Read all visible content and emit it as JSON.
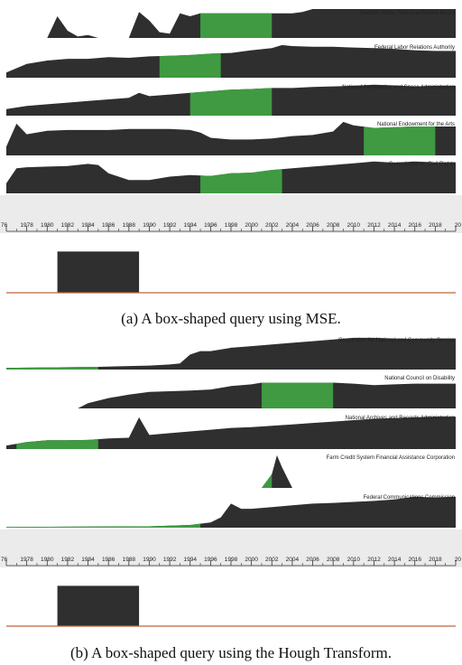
{
  "figure": {
    "caption_a": "(a) A box-shaped query using MSE.",
    "caption_b": "(b) A box-shaped query using the Hough Transform."
  },
  "colors": {
    "area": "#2f2f2f",
    "highlight": "#3f9a42",
    "background": "#ffffff",
    "axis_band": "#ebebeb",
    "baseline": "#c0643a"
  },
  "chart_data": [
    {
      "type": "area",
      "title": "(a) A box-shaped query using MSE.",
      "x_range": [
        1976,
        2020
      ],
      "x_ticks": [
        "76",
        "1978",
        "1980",
        "1982",
        "1984",
        "1986",
        "1988",
        "1990",
        "1992",
        "1994",
        "1996",
        "1998",
        "2000",
        "2002",
        "2004",
        "2006",
        "2008",
        "2010",
        "2012",
        "2014",
        "2016",
        "2018",
        "20"
      ],
      "series": [
        {
          "name": "Nuclear Waste Technical Review Board",
          "highlight": [
            1995,
            2002
          ],
          "points": [
            [
              1976,
              0
            ],
            [
              1979,
              0
            ],
            [
              1980,
              0
            ],
            [
              1981,
              0.75
            ],
            [
              1982,
              0.25
            ],
            [
              1983,
              0.05
            ],
            [
              1984,
              0.1
            ],
            [
              1985,
              0
            ],
            [
              1987,
              0
            ],
            [
              1988,
              0
            ],
            [
              1989,
              0.9
            ],
            [
              1990,
              0.6
            ],
            [
              1991,
              0.2
            ],
            [
              1992,
              0.15
            ],
            [
              1993,
              0.85
            ],
            [
              1994,
              0.75
            ],
            [
              1995,
              0.85
            ],
            [
              2004,
              0.85
            ],
            [
              2005,
              0.9
            ],
            [
              2006,
              1.0
            ],
            [
              2008,
              1.0
            ],
            [
              2010,
              1.0
            ],
            [
              2014,
              1.0
            ],
            [
              2020,
              1.0
            ]
          ]
        },
        {
          "name": "Federal Labor Relations Authority",
          "highlight": [
            1991,
            1997
          ],
          "points": [
            [
              1976,
              0.15
            ],
            [
              1978,
              0.4
            ],
            [
              1980,
              0.5
            ],
            [
              1982,
              0.55
            ],
            [
              1984,
              0.55
            ],
            [
              1986,
              0.6
            ],
            [
              1988,
              0.58
            ],
            [
              1990,
              0.62
            ],
            [
              1992,
              0.64
            ],
            [
              1994,
              0.66
            ],
            [
              1996,
              0.7
            ],
            [
              1998,
              0.72
            ],
            [
              2000,
              0.8
            ],
            [
              2002,
              0.86
            ],
            [
              2003,
              0.95
            ],
            [
              2004,
              0.92
            ],
            [
              2006,
              0.9
            ],
            [
              2008,
              0.9
            ],
            [
              2010,
              0.88
            ],
            [
              2012,
              0.86
            ],
            [
              2014,
              0.84
            ],
            [
              2016,
              0.8
            ],
            [
              2018,
              0.78
            ],
            [
              2020,
              0.78
            ]
          ]
        },
        {
          "name": "National Aeronautics and Space Administration",
          "highlight": [
            1994,
            2002
          ],
          "points": [
            [
              1976,
              0.2
            ],
            [
              1978,
              0.3
            ],
            [
              1980,
              0.35
            ],
            [
              1982,
              0.4
            ],
            [
              1984,
              0.45
            ],
            [
              1986,
              0.5
            ],
            [
              1988,
              0.55
            ],
            [
              1989,
              0.7
            ],
            [
              1990,
              0.6
            ],
            [
              1992,
              0.65
            ],
            [
              1994,
              0.7
            ],
            [
              1996,
              0.75
            ],
            [
              1998,
              0.8
            ],
            [
              2000,
              0.82
            ],
            [
              2002,
              0.85
            ],
            [
              2004,
              0.85
            ],
            [
              2006,
              0.88
            ],
            [
              2008,
              0.9
            ],
            [
              2010,
              0.92
            ],
            [
              2012,
              0.95
            ],
            [
              2014,
              0.93
            ],
            [
              2016,
              0.9
            ],
            [
              2018,
              0.92
            ],
            [
              2020,
              0.92
            ]
          ]
        },
        {
          "name": "National Endowment for the Arts",
          "highlight": [
            2011,
            2018
          ],
          "points": [
            [
              1976,
              0.25
            ],
            [
              1977,
              0.9
            ],
            [
              1978,
              0.6
            ],
            [
              1980,
              0.7
            ],
            [
              1982,
              0.72
            ],
            [
              1984,
              0.72
            ],
            [
              1986,
              0.72
            ],
            [
              1988,
              0.75
            ],
            [
              1990,
              0.75
            ],
            [
              1992,
              0.75
            ],
            [
              1994,
              0.72
            ],
            [
              1995,
              0.65
            ],
            [
              1996,
              0.5
            ],
            [
              1998,
              0.45
            ],
            [
              2000,
              0.45
            ],
            [
              2002,
              0.48
            ],
            [
              2004,
              0.55
            ],
            [
              2006,
              0.58
            ],
            [
              2008,
              0.68
            ],
            [
              2009,
              0.95
            ],
            [
              2010,
              0.85
            ],
            [
              2012,
              0.78
            ],
            [
              2014,
              0.8
            ],
            [
              2016,
              0.82
            ],
            [
              2018,
              0.82
            ],
            [
              2020,
              0.82
            ]
          ]
        },
        {
          "name": "Commission on Civil Rights",
          "highlight": [
            1995,
            2003
          ],
          "points": [
            [
              1976,
              0.3
            ],
            [
              1977,
              0.75
            ],
            [
              1978,
              0.78
            ],
            [
              1980,
              0.8
            ],
            [
              1982,
              0.82
            ],
            [
              1984,
              0.88
            ],
            [
              1985,
              0.85
            ],
            [
              1986,
              0.6
            ],
            [
              1988,
              0.4
            ],
            [
              1990,
              0.4
            ],
            [
              1992,
              0.5
            ],
            [
              1994,
              0.55
            ],
            [
              1996,
              0.52
            ],
            [
              1998,
              0.6
            ],
            [
              2000,
              0.62
            ],
            [
              2002,
              0.7
            ],
            [
              2004,
              0.75
            ],
            [
              2006,
              0.8
            ],
            [
              2008,
              0.85
            ],
            [
              2010,
              0.9
            ],
            [
              2012,
              0.95
            ],
            [
              2014,
              0.92
            ],
            [
              2016,
              0.95
            ],
            [
              2018,
              0.93
            ],
            [
              2020,
              0.93
            ]
          ]
        }
      ],
      "query": {
        "shape": "box",
        "points": [
          [
            1976,
            0
          ],
          [
            1981,
            0
          ],
          [
            1981,
            0.95
          ],
          [
            1989,
            0.95
          ],
          [
            1989,
            0
          ],
          [
            2020,
            0
          ]
        ]
      }
    },
    {
      "type": "area",
      "title": "(b) A box-shaped query using the Hough Transform.",
      "x_range": [
        1976,
        2020
      ],
      "x_ticks": [
        "76",
        "1978",
        "1980",
        "1982",
        "1984",
        "1986",
        "1988",
        "1990",
        "1992",
        "1994",
        "1996",
        "1998",
        "2000",
        "2002",
        "2004",
        "2006",
        "2008",
        "2010",
        "2012",
        "2014",
        "2016",
        "2018",
        "20"
      ],
      "series": [
        {
          "name": "Corporation for National and Community Service",
          "highlight": [
            1976,
            1985
          ],
          "points": [
            [
              1976,
              0.05
            ],
            [
              1985,
              0.08
            ],
            [
              1990,
              0.12
            ],
            [
              1992,
              0.15
            ],
            [
              1993,
              0.18
            ],
            [
              1994,
              0.45
            ],
            [
              1995,
              0.55
            ],
            [
              1996,
              0.55
            ],
            [
              1998,
              0.65
            ],
            [
              2000,
              0.7
            ],
            [
              2002,
              0.75
            ],
            [
              2004,
              0.8
            ],
            [
              2006,
              0.85
            ],
            [
              2008,
              0.9
            ],
            [
              2010,
              0.95
            ],
            [
              2012,
              0.95
            ],
            [
              2014,
              0.93
            ],
            [
              2016,
              0.92
            ],
            [
              2018,
              0.93
            ],
            [
              2020,
              0.93
            ]
          ]
        },
        {
          "name": "National Council on Disability",
          "highlight": [
            2001,
            2008
          ],
          "points": [
            [
              1976,
              0
            ],
            [
              1983,
              0
            ],
            [
              1984,
              0.15
            ],
            [
              1986,
              0.3
            ],
            [
              1988,
              0.4
            ],
            [
              1990,
              0.48
            ],
            [
              1992,
              0.5
            ],
            [
              1994,
              0.52
            ],
            [
              1996,
              0.55
            ],
            [
              1998,
              0.65
            ],
            [
              2000,
              0.7
            ],
            [
              2001,
              0.75
            ],
            [
              2008,
              0.75
            ],
            [
              2010,
              0.72
            ],
            [
              2012,
              0.68
            ],
            [
              2014,
              0.7
            ],
            [
              2016,
              0.72
            ],
            [
              2018,
              0.72
            ],
            [
              2020,
              0.72
            ]
          ]
        },
        {
          "name": "National Archives and Records Administration",
          "highlight": [
            1977,
            1985
          ],
          "points": [
            [
              1976,
              0.1
            ],
            [
              1978,
              0.2
            ],
            [
              1980,
              0.25
            ],
            [
              1982,
              0.25
            ],
            [
              1984,
              0.26
            ],
            [
              1986,
              0.3
            ],
            [
              1988,
              0.32
            ],
            [
              1989,
              0.9
            ],
            [
              1990,
              0.4
            ],
            [
              1992,
              0.45
            ],
            [
              1994,
              0.5
            ],
            [
              1996,
              0.55
            ],
            [
              1998,
              0.6
            ],
            [
              2000,
              0.62
            ],
            [
              2002,
              0.66
            ],
            [
              2004,
              0.7
            ],
            [
              2006,
              0.74
            ],
            [
              2008,
              0.78
            ],
            [
              2010,
              0.82
            ],
            [
              2012,
              0.86
            ],
            [
              2014,
              0.88
            ],
            [
              2016,
              0.9
            ],
            [
              2018,
              0.92
            ],
            [
              2020,
              0.92
            ]
          ]
        },
        {
          "name": "Farm Credit System Financial Assistance Corporation",
          "highlight": [
            1996,
            2002
          ],
          "points": [
            [
              1976,
              0
            ],
            [
              2001,
              0
            ],
            [
              2002,
              0.4
            ],
            [
              2002.5,
              0.95
            ],
            [
              2003,
              0.6
            ],
            [
              2004,
              0
            ],
            [
              2020,
              0
            ]
          ]
        },
        {
          "name": "Federal Communications Commission",
          "highlight": [
            1976,
            1995
          ],
          "points": [
            [
              1976,
              0.02
            ],
            [
              1990,
              0.04
            ],
            [
              1994,
              0.08
            ],
            [
              1996,
              0.15
            ],
            [
              1997,
              0.3
            ],
            [
              1998,
              0.7
            ],
            [
              1999,
              0.55
            ],
            [
              2000,
              0.55
            ],
            [
              2002,
              0.6
            ],
            [
              2004,
              0.65
            ],
            [
              2006,
              0.7
            ],
            [
              2008,
              0.72
            ],
            [
              2010,
              0.75
            ],
            [
              2012,
              0.78
            ],
            [
              2014,
              0.82
            ],
            [
              2016,
              0.9
            ],
            [
              2018,
              0.88
            ],
            [
              2020,
              0.9
            ]
          ]
        }
      ],
      "query": {
        "shape": "box",
        "points": [
          [
            1976,
            0
          ],
          [
            1981,
            0
          ],
          [
            1981,
            0.95
          ],
          [
            1989,
            0.95
          ],
          [
            1989,
            0
          ],
          [
            2020,
            0
          ]
        ]
      }
    }
  ]
}
